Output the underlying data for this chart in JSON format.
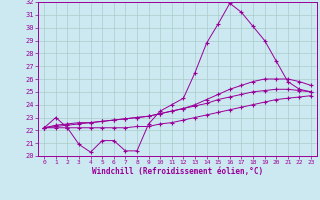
{
  "xlabel": "Windchill (Refroidissement éolien,°C)",
  "background_color": "#cce8f0",
  "line_color": "#990099",
  "grid_color": "#aacccc",
  "xlim": [
    -0.5,
    23.5
  ],
  "ylim": [
    20,
    32
  ],
  "xticks": [
    0,
    1,
    2,
    3,
    4,
    5,
    6,
    7,
    8,
    9,
    10,
    11,
    12,
    13,
    14,
    15,
    16,
    17,
    18,
    19,
    20,
    21,
    22,
    23
  ],
  "yticks": [
    20,
    21,
    22,
    23,
    24,
    25,
    26,
    27,
    28,
    29,
    30,
    31,
    32
  ],
  "line1_x": [
    0,
    1,
    2,
    3,
    4,
    5,
    6,
    7,
    8,
    9,
    10,
    11,
    12,
    13,
    14,
    15,
    16,
    17,
    18,
    19,
    20,
    21,
    22,
    23
  ],
  "line1_y": [
    22.2,
    23.0,
    22.2,
    20.9,
    20.3,
    21.2,
    21.2,
    20.4,
    20.4,
    22.5,
    23.5,
    24.0,
    24.5,
    26.5,
    28.8,
    30.3,
    31.9,
    31.2,
    30.1,
    29.0,
    27.4,
    25.8,
    25.2,
    25.0
  ],
  "line2_x": [
    0,
    1,
    2,
    3,
    4,
    5,
    6,
    7,
    8,
    9,
    10,
    11,
    12,
    13,
    14,
    15,
    16,
    17,
    18,
    19,
    20,
    21,
    22,
    23
  ],
  "line2_y": [
    22.2,
    22.4,
    22.5,
    22.6,
    22.6,
    22.7,
    22.8,
    22.9,
    23.0,
    23.1,
    23.3,
    23.5,
    23.7,
    24.0,
    24.4,
    24.8,
    25.2,
    25.5,
    25.8,
    26.0,
    26.0,
    26.0,
    25.8,
    25.5
  ],
  "line3_x": [
    0,
    1,
    2,
    3,
    4,
    5,
    6,
    7,
    8,
    9,
    10,
    11,
    12,
    13,
    14,
    15,
    16,
    17,
    18,
    19,
    20,
    21,
    22,
    23
  ],
  "line3_y": [
    22.2,
    22.3,
    22.4,
    22.5,
    22.6,
    22.7,
    22.8,
    22.9,
    23.0,
    23.1,
    23.3,
    23.5,
    23.7,
    23.9,
    24.1,
    24.4,
    24.6,
    24.8,
    25.0,
    25.1,
    25.2,
    25.2,
    25.1,
    25.0
  ],
  "line4_x": [
    0,
    1,
    2,
    3,
    4,
    5,
    6,
    7,
    8,
    9,
    10,
    11,
    12,
    13,
    14,
    15,
    16,
    17,
    18,
    19,
    20,
    21,
    22,
    23
  ],
  "line4_y": [
    22.2,
    22.2,
    22.2,
    22.2,
    22.2,
    22.2,
    22.2,
    22.2,
    22.3,
    22.3,
    22.5,
    22.6,
    22.8,
    23.0,
    23.2,
    23.4,
    23.6,
    23.8,
    24.0,
    24.2,
    24.4,
    24.5,
    24.6,
    24.7
  ]
}
